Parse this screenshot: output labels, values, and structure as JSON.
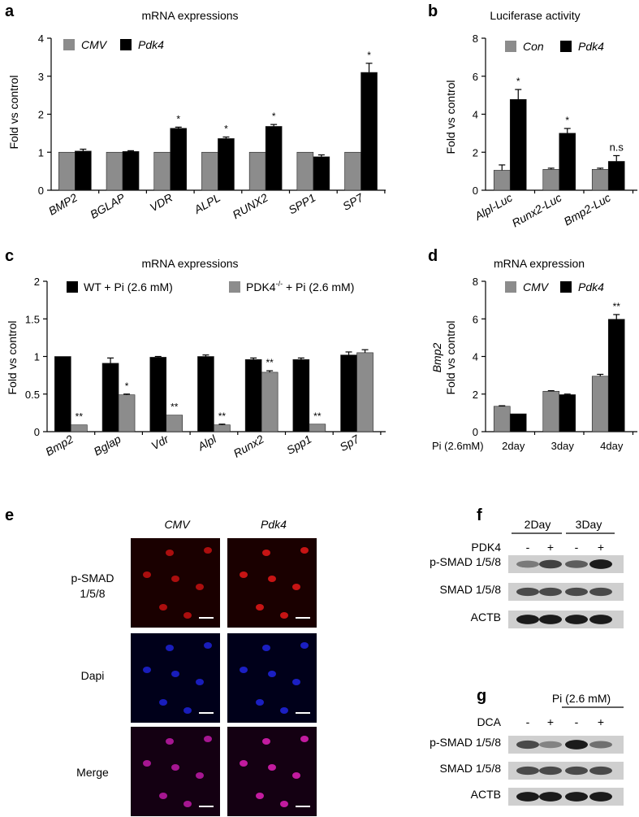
{
  "panels": {
    "a": {
      "letter": "a",
      "title": "mRNA expressions",
      "ylabel": "Fold vs control",
      "legend": [
        "CMV",
        "Pdk4"
      ]
    },
    "b": {
      "letter": "b",
      "title": "Luciferase activity",
      "ylabel": "Fold vs control",
      "legend": [
        "Con",
        "Pdk4"
      ]
    },
    "c": {
      "letter": "c",
      "title": "mRNA expressions",
      "ylabel": "Fold vs control",
      "legend": [
        "WT + Pi (2.6 mM)",
        "PDK4-/- + Pi (2.6 mM)"
      ],
      "legend_pdk4_base": "PDK4",
      "legend_pdk4_sup": "-/-",
      "legend_pdk4_rest": " + Pi (2.6 mM)"
    },
    "d": {
      "letter": "d",
      "title": "mRNA expression",
      "ylabel_gene": "Bmp2",
      "ylabel": "Fold vs control",
      "legend": [
        "CMV",
        "Pdk4"
      ],
      "xprefix": "Pi (2.6mM)"
    },
    "e": {
      "letter": "e",
      "col_headers": [
        "CMV",
        "Pdk4"
      ],
      "row_labels": [
        "p-SMAD",
        "1/5/8",
        "Dapi",
        "Merge"
      ]
    },
    "f": {
      "letter": "f",
      "time_headers": [
        "2Day",
        "3Day"
      ],
      "treatment_label": "PDK4",
      "signs": [
        "-",
        "+",
        "-",
        "+"
      ],
      "rows": [
        "p-SMAD 1/5/8",
        "SMAD 1/5/8",
        "ACTB"
      ]
    },
    "g": {
      "letter": "g",
      "header": "Pi (2.6 mM)",
      "treatment_label": "DCA",
      "signs": [
        "-",
        "+",
        "-",
        "+"
      ],
      "rows": [
        "p-SMAD 1/5/8",
        "SMAD 1/5/8",
        "ACTB"
      ]
    }
  },
  "colors": {
    "gray": "#8c8c8c",
    "black": "#000000"
  },
  "chart_data": [
    {
      "panel": "a",
      "type": "bar",
      "title": "mRNA expressions",
      "xlabel": "",
      "ylabel": "Fold vs control",
      "ylim": [
        0,
        4
      ],
      "yticks": [
        0,
        1,
        2,
        3,
        4
      ],
      "legend_position": "top-left",
      "categories": [
        "BMP2",
        "BGLAP",
        "VDR",
        "ALPL",
        "RUNX2",
        "SPP1",
        "SP7"
      ],
      "series": [
        {
          "name": "CMV",
          "color": "#8c8c8c",
          "values": [
            1,
            1,
            1,
            1,
            1,
            1,
            1
          ],
          "errors": [
            0,
            0,
            0,
            0,
            0,
            0,
            0
          ]
        },
        {
          "name": "Pdk4",
          "color": "#000000",
          "values": [
            1.03,
            1.02,
            1.63,
            1.36,
            1.68,
            0.88,
            3.1
          ],
          "errors": [
            0.05,
            0.02,
            0.03,
            0.04,
            0.05,
            0.05,
            0.24
          ]
        }
      ],
      "significance": [
        "",
        "",
        "*",
        "*",
        "*",
        "",
        "*"
      ]
    },
    {
      "panel": "b",
      "type": "bar",
      "title": "Luciferase activity",
      "xlabel": "",
      "ylabel": "Fold vs control",
      "ylim": [
        0,
        8
      ],
      "yticks": [
        0,
        2,
        4,
        6,
        8
      ],
      "legend_position": "top-left",
      "categories": [
        "Alpl-Luc",
        "Runx2-Luc",
        "Bmp2-Luc"
      ],
      "series": [
        {
          "name": "Con",
          "color": "#8c8c8c",
          "values": [
            1.05,
            1.1,
            1.1
          ],
          "errors": [
            0.28,
            0.06,
            0.06
          ]
        },
        {
          "name": "Pdk4",
          "color": "#000000",
          "values": [
            4.78,
            3.0,
            1.52
          ],
          "errors": [
            0.52,
            0.25,
            0.3
          ]
        }
      ],
      "significance": [
        "*",
        "*",
        "n.s"
      ]
    },
    {
      "panel": "c",
      "type": "bar",
      "title": "mRNA expressions",
      "xlabel": "",
      "ylabel": "Fold vs control",
      "ylim": [
        0,
        2
      ],
      "yticks": [
        0,
        0.5,
        1,
        1.5,
        2
      ],
      "ytick_labels": [
        "0",
        "0.5",
        "1",
        "1.5",
        "2"
      ],
      "legend_position": "top",
      "categories": [
        "Bmp2",
        "Bglap",
        "Vdr",
        "Alpl",
        "Runx2",
        "Spp1",
        "Sp7"
      ],
      "series": [
        {
          "name": "WT + Pi (2.6 mM)",
          "color": "#000000",
          "values": [
            1.0,
            0.91,
            0.99,
            1.0,
            0.96,
            0.96,
            1.02
          ],
          "errors": [
            0,
            0.07,
            0.01,
            0.02,
            0.02,
            0.02,
            0.04
          ]
        },
        {
          "name": "PDK4-/- + Pi (2.6 mM)",
          "color": "#8c8c8c",
          "values": [
            0.09,
            0.49,
            0.22,
            0.09,
            0.79,
            0.1,
            1.05
          ],
          "errors": [
            0,
            0.01,
            0,
            0.01,
            0.02,
            0,
            0.04
          ]
        }
      ],
      "significance": [
        "**",
        "*",
        "**",
        "**",
        "**",
        "**",
        ""
      ]
    },
    {
      "panel": "d",
      "type": "bar",
      "title": "mRNA expression",
      "xlabel": "Pi (2.6mM)",
      "ylabel": "Bmp2 Fold vs control",
      "ylim": [
        0,
        8
      ],
      "yticks": [
        0,
        2,
        4,
        6,
        8
      ],
      "legend_position": "top-left",
      "categories": [
        "2day",
        "3day",
        "4day"
      ],
      "series": [
        {
          "name": "CMV",
          "color": "#8c8c8c",
          "values": [
            1.35,
            2.15,
            2.95
          ],
          "errors": [
            0.03,
            0.03,
            0.1
          ]
        },
        {
          "name": "Pdk4",
          "color": "#000000",
          "values": [
            0.95,
            1.97,
            5.98
          ],
          "errors": [
            0,
            0.03,
            0.25
          ]
        }
      ],
      "significance": [
        "",
        "",
        "**"
      ]
    }
  ]
}
